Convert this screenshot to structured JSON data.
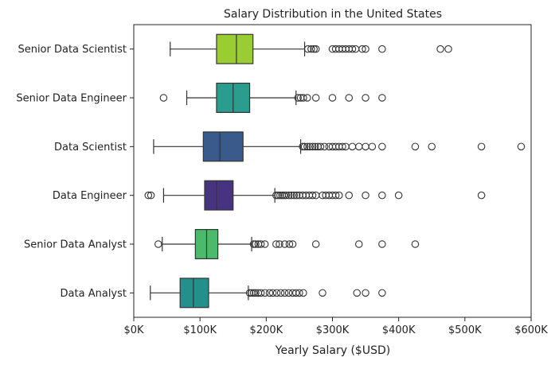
{
  "chart_data": {
    "type": "boxplot",
    "orientation": "horizontal",
    "title": "Salary Distribution in the United States",
    "xlabel": "Yearly Salary ($USD)",
    "ylabel": "",
    "xlim": [
      0,
      600000
    ],
    "x_ticks": [
      {
        "value": 0,
        "label": "$0K"
      },
      {
        "value": 100000,
        "label": "$100K"
      },
      {
        "value": 200000,
        "label": "$200K"
      },
      {
        "value": 300000,
        "label": "$300K"
      },
      {
        "value": 400000,
        "label": "$400K"
      },
      {
        "value": 500000,
        "label": "$500K"
      },
      {
        "value": 600000,
        "label": "$600K"
      }
    ],
    "grid": false,
    "palette": "viridis",
    "categories": [
      "Senior Data Scientist",
      "Senior Data Engineer",
      "Data Scientist",
      "Data Engineer",
      "Senior Data Analyst",
      "Data Analyst"
    ],
    "boxes": [
      {
        "category": "Senior Data Scientist",
        "color": "#9acd32",
        "whisker_low": 55000,
        "q1": 125000,
        "median": 155000,
        "q3": 180000,
        "whisker_high": 258000,
        "outliers": [
          263000,
          268000,
          272000,
          275000,
          300000,
          305000,
          310000,
          315000,
          320000,
          325000,
          330000,
          335000,
          345000,
          350000,
          375000,
          463000,
          475000
        ]
      },
      {
        "category": "Senior Data Engineer",
        "color": "#2a9d8f",
        "whisker_low": 80000,
        "q1": 125000,
        "median": 150000,
        "q3": 175000,
        "whisker_high": 245000,
        "outliers": [
          45000,
          248000,
          252000,
          256000,
          262000,
          275000,
          300000,
          325000,
          350000,
          375000
        ]
      },
      {
        "category": "Data Scientist",
        "color": "#3b5a8c",
        "whisker_low": 30000,
        "q1": 105000,
        "median": 130000,
        "q3": 165000,
        "whisker_high": 252000,
        "outliers": [
          255000,
          258000,
          262000,
          266000,
          270000,
          274000,
          278000,
          282000,
          288000,
          295000,
          300000,
          305000,
          310000,
          315000,
          320000,
          330000,
          340000,
          350000,
          360000,
          375000,
          425000,
          450000,
          525000,
          585000
        ]
      },
      {
        "category": "Data Engineer",
        "color": "#463480",
        "whisker_low": 45000,
        "q1": 107000,
        "median": 125000,
        "q3": 150000,
        "whisker_high": 213000,
        "outliers": [
          22000,
          26000,
          215000,
          218000,
          221000,
          224000,
          227000,
          230000,
          234000,
          238000,
          242000,
          246000,
          250000,
          255000,
          260000,
          265000,
          270000,
          275000,
          285000,
          290000,
          295000,
          300000,
          305000,
          310000,
          325000,
          350000,
          375000,
          400000,
          525000
        ]
      },
      {
        "category": "Senior Data Analyst",
        "color": "#4cba6c",
        "whisker_low": 43000,
        "q1": 93000,
        "median": 110000,
        "q3": 127000,
        "whisker_high": 178000,
        "outliers": [
          37000,
          181000,
          184000,
          188000,
          192000,
          198000,
          215000,
          220000,
          228000,
          235000,
          240000,
          275000,
          340000,
          375000,
          425000
        ]
      },
      {
        "category": "Data Analyst",
        "color": "#23908c",
        "whisker_low": 25000,
        "q1": 70000,
        "median": 90000,
        "q3": 113000,
        "whisker_high": 173000,
        "outliers": [
          175000,
          178000,
          181000,
          184000,
          188000,
          192000,
          198000,
          205000,
          210000,
          216000,
          222000,
          228000,
          234000,
          240000,
          245000,
          250000,
          256000,
          285000,
          337000,
          350000,
          375000
        ]
      }
    ]
  }
}
